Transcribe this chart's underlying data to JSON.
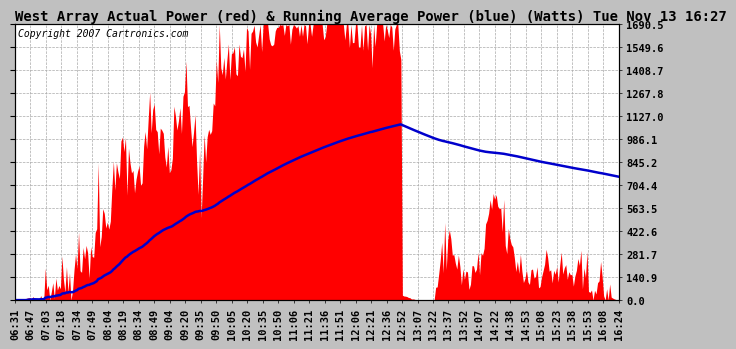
{
  "title": "West Array Actual Power (red) & Running Average Power (blue) (Watts) Tue Nov 13 16:27",
  "subtitle": "Copyright 2007 Cartronics.com",
  "bg_color": "#c0c0c0",
  "plot_bg_color": "#ffffff",
  "ymin": 0.0,
  "ymax": 1690.5,
  "yticks": [
    0.0,
    140.9,
    281.7,
    422.6,
    563.5,
    704.4,
    845.2,
    986.1,
    1127.0,
    1267.8,
    1408.7,
    1549.6,
    1690.5
  ],
  "xtick_labels": [
    "06:31",
    "06:47",
    "07:03",
    "07:18",
    "07:34",
    "07:49",
    "08:04",
    "08:19",
    "08:34",
    "08:49",
    "09:04",
    "09:20",
    "09:35",
    "09:50",
    "10:05",
    "10:20",
    "10:35",
    "10:50",
    "11:06",
    "11:21",
    "11:36",
    "11:51",
    "12:06",
    "12:21",
    "12:36",
    "12:52",
    "13:07",
    "13:22",
    "13:37",
    "13:52",
    "14:07",
    "14:22",
    "14:38",
    "14:53",
    "15:08",
    "15:23",
    "15:38",
    "15:53",
    "16:08",
    "16:24"
  ],
  "red_color": "#ff0000",
  "blue_color": "#0000cc",
  "title_fontsize": 10,
  "subtitle_fontsize": 7,
  "tick_fontsize": 7.5,
  "grid_color": "#aaaaaa"
}
